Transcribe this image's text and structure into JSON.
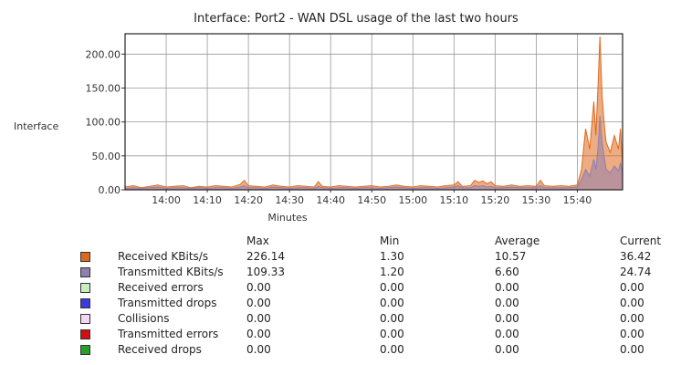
{
  "chart_data": {
    "type": "area",
    "title": "Interface: Port2 - WAN DSL usage of the last two hours",
    "ylabel": "Interface",
    "xlabel": "Minutes",
    "ylim": [
      0,
      230
    ],
    "yticks": [
      "0.00",
      "50.00",
      "100.00",
      "150.00",
      "200.00"
    ],
    "ytick_values": [
      0,
      50,
      100,
      150,
      200
    ],
    "xticks": [
      "14:00",
      "14:10",
      "14:20",
      "14:30",
      "14:40",
      "14:50",
      "15:00",
      "15:10",
      "15:20",
      "15:30",
      "15:40"
    ],
    "xtick_minutes": [
      840,
      850,
      860,
      870,
      880,
      890,
      900,
      910,
      920,
      930,
      940
    ],
    "x_start_minute": 830,
    "x_end_minute": 951,
    "grid": true,
    "series": [
      {
        "name": "Received KBits/s",
        "color": "#e0681c",
        "points": [
          [
            830,
            4
          ],
          [
            832,
            6
          ],
          [
            834,
            3
          ],
          [
            836,
            5
          ],
          [
            838,
            7
          ],
          [
            840,
            4
          ],
          [
            842,
            5
          ],
          [
            844,
            6
          ],
          [
            846,
            3
          ],
          [
            848,
            5
          ],
          [
            850,
            4
          ],
          [
            852,
            6
          ],
          [
            854,
            5
          ],
          [
            856,
            4
          ],
          [
            858,
            8
          ],
          [
            859,
            14
          ],
          [
            860,
            6
          ],
          [
            862,
            5
          ],
          [
            864,
            4
          ],
          [
            866,
            7
          ],
          [
            868,
            5
          ],
          [
            870,
            4
          ],
          [
            872,
            6
          ],
          [
            874,
            5
          ],
          [
            876,
            4
          ],
          [
            877,
            12
          ],
          [
            878,
            5
          ],
          [
            880,
            4
          ],
          [
            882,
            6
          ],
          [
            884,
            5
          ],
          [
            886,
            4
          ],
          [
            888,
            5
          ],
          [
            890,
            6
          ],
          [
            892,
            4
          ],
          [
            894,
            5
          ],
          [
            896,
            7
          ],
          [
            898,
            5
          ],
          [
            900,
            4
          ],
          [
            902,
            6
          ],
          [
            904,
            5
          ],
          [
            906,
            4
          ],
          [
            908,
            6
          ],
          [
            910,
            7
          ],
          [
            911,
            12
          ],
          [
            912,
            5
          ],
          [
            914,
            6
          ],
          [
            915,
            14
          ],
          [
            916,
            11
          ],
          [
            917,
            13
          ],
          [
            918,
            9
          ],
          [
            919,
            12
          ],
          [
            920,
            6
          ],
          [
            922,
            5
          ],
          [
            924,
            7
          ],
          [
            926,
            5
          ],
          [
            928,
            6
          ],
          [
            930,
            5
          ],
          [
            931,
            14
          ],
          [
            932,
            6
          ],
          [
            934,
            5
          ],
          [
            936,
            6
          ],
          [
            938,
            5
          ],
          [
            940,
            7
          ],
          [
            941,
            30
          ],
          [
            942,
            90
          ],
          [
            943,
            60
          ],
          [
            944,
            130
          ],
          [
            944.5,
            80
          ],
          [
            945,
            150
          ],
          [
            945.5,
            226
          ],
          [
            946,
            140
          ],
          [
            946.5,
            100
          ],
          [
            947,
            70
          ],
          [
            948,
            55
          ],
          [
            949,
            80
          ],
          [
            950,
            60
          ],
          [
            950.5,
            90
          ],
          [
            951,
            36
          ]
        ]
      },
      {
        "name": "Transmitted KBits/s",
        "color": "#8f7fb0",
        "points": [
          [
            830,
            2
          ],
          [
            832,
            3
          ],
          [
            834,
            2
          ],
          [
            836,
            3
          ],
          [
            838,
            4
          ],
          [
            840,
            2
          ],
          [
            842,
            3
          ],
          [
            844,
            3
          ],
          [
            846,
            2
          ],
          [
            848,
            3
          ],
          [
            850,
            2
          ],
          [
            852,
            3
          ],
          [
            854,
            3
          ],
          [
            856,
            2
          ],
          [
            858,
            4
          ],
          [
            859,
            6
          ],
          [
            860,
            3
          ],
          [
            862,
            3
          ],
          [
            864,
            2
          ],
          [
            866,
            4
          ],
          [
            868,
            3
          ],
          [
            870,
            2
          ],
          [
            872,
            3
          ],
          [
            874,
            3
          ],
          [
            876,
            2
          ],
          [
            877,
            5
          ],
          [
            878,
            3
          ],
          [
            880,
            2
          ],
          [
            882,
            3
          ],
          [
            884,
            3
          ],
          [
            886,
            2
          ],
          [
            888,
            3
          ],
          [
            890,
            3
          ],
          [
            892,
            2
          ],
          [
            894,
            3
          ],
          [
            896,
            4
          ],
          [
            898,
            3
          ],
          [
            900,
            2
          ],
          [
            902,
            3
          ],
          [
            904,
            3
          ],
          [
            906,
            2
          ],
          [
            908,
            3
          ],
          [
            910,
            4
          ],
          [
            911,
            6
          ],
          [
            912,
            3
          ],
          [
            914,
            3
          ],
          [
            915,
            6
          ],
          [
            916,
            5
          ],
          [
            917,
            6
          ],
          [
            918,
            4
          ],
          [
            919,
            5
          ],
          [
            920,
            3
          ],
          [
            922,
            3
          ],
          [
            924,
            4
          ],
          [
            926,
            3
          ],
          [
            928,
            3
          ],
          [
            930,
            3
          ],
          [
            931,
            6
          ],
          [
            932,
            3
          ],
          [
            934,
            3
          ],
          [
            936,
            3
          ],
          [
            938,
            3
          ],
          [
            940,
            4
          ],
          [
            941,
            15
          ],
          [
            942,
            30
          ],
          [
            943,
            20
          ],
          [
            944,
            45
          ],
          [
            944.5,
            30
          ],
          [
            945,
            60
          ],
          [
            945.5,
            109
          ],
          [
            946,
            70
          ],
          [
            946.5,
            50
          ],
          [
            947,
            30
          ],
          [
            948,
            25
          ],
          [
            949,
            35
          ],
          [
            950,
            28
          ],
          [
            950.5,
            40
          ],
          [
            951,
            24
          ]
        ]
      }
    ]
  },
  "legend": {
    "headers": {
      "max": "Max",
      "min": "Min",
      "average": "Average",
      "current": "Current"
    },
    "rows": [
      {
        "color": "#e0681c",
        "name": "Received KBits/s",
        "max": "226.14",
        "min": "1.30",
        "average": "10.57",
        "current": "36.42"
      },
      {
        "color": "#8f7fb0",
        "name": "Transmitted KBits/s",
        "max": "109.33",
        "min": "1.20",
        "average": "6.60",
        "current": "24.74"
      },
      {
        "color": "#c8efc0",
        "name": "Received errors",
        "max": "0.00",
        "min": "0.00",
        "average": "0.00",
        "current": "0.00"
      },
      {
        "color": "#3a3adf",
        "name": "Transmitted drops",
        "max": "0.00",
        "min": "0.00",
        "average": "0.00",
        "current": "0.00"
      },
      {
        "color": "#f3d7f3",
        "name": "Collisions",
        "max": "0.00",
        "min": "0.00",
        "average": "0.00",
        "current": "0.00"
      },
      {
        "color": "#d01010",
        "name": "Transmitted errors",
        "max": "0.00",
        "min": "0.00",
        "average": "0.00",
        "current": "0.00"
      },
      {
        "color": "#28a028",
        "name": "Received drops",
        "max": "0.00",
        "min": "0.00",
        "average": "0.00",
        "current": "0.00"
      }
    ]
  }
}
